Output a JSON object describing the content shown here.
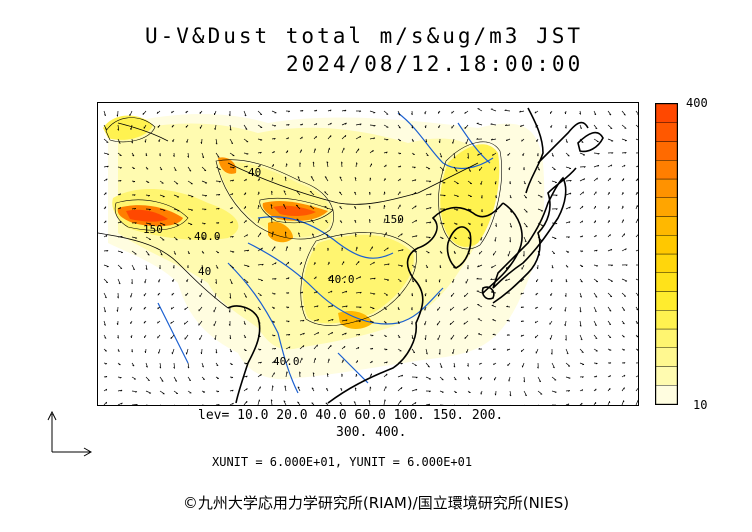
{
  "title": {
    "line1": "U-V&Dust total m/s&ug/m3 JST",
    "line2": "2024/08/12.18:00:00"
  },
  "colorbar": {
    "max_label": "400",
    "min_label": "10",
    "colors": [
      "#fffde0",
      "#fffbb0",
      "#fff890",
      "#fff570",
      "#fff250",
      "#ffec2e",
      "#ffe21a",
      "#ffd60c",
      "#ffc800",
      "#ffb800",
      "#ffa500",
      "#ff9200",
      "#ff7e00",
      "#ff6a00",
      "#ff5800",
      "#ff4800"
    ]
  },
  "contour_labels": [
    "40",
    "150",
    "40.0",
    "150",
    "40.0",
    "40",
    "40.0"
  ],
  "legend": {
    "levels_line1": "lev= 10.0 20.0 40.0 60.0 100. 150. 200.",
    "levels_line2": "300. 400.",
    "units": "XUNIT = 6.000E+01, YUNIT = 6.000E+01"
  },
  "copyright": "©九州大学応用力学研究所(RIAM)/国立環境研究所(NIES)"
}
